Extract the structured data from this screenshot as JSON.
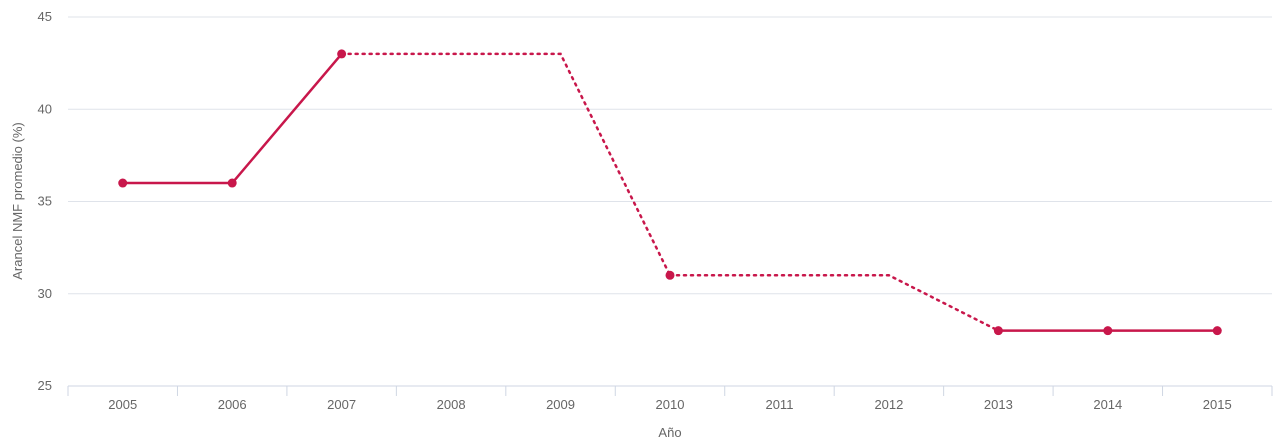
{
  "chart_data": {
    "type": "line",
    "title": "",
    "xlabel": "Año",
    "ylabel": "Arancel NMF promedio (%)",
    "categories": [
      "2005",
      "2006",
      "2007",
      "2008",
      "2009",
      "2010",
      "2011",
      "2012",
      "2013",
      "2014",
      "2015"
    ],
    "x": [
      2005,
      2006,
      2007,
      2008,
      2009,
      2010,
      2011,
      2012,
      2013,
      2014,
      2015
    ],
    "series": [
      {
        "values": [
          36,
          36,
          43,
          null,
          null,
          31,
          null,
          null,
          28,
          28,
          28
        ],
        "color": "#c8174b",
        "gaps": "dotted line connects across missing years"
      }
    ],
    "ylim": [
      25,
      45
    ],
    "yticks": [
      25,
      30,
      35,
      40,
      45
    ],
    "grid": true,
    "legend": "none"
  }
}
